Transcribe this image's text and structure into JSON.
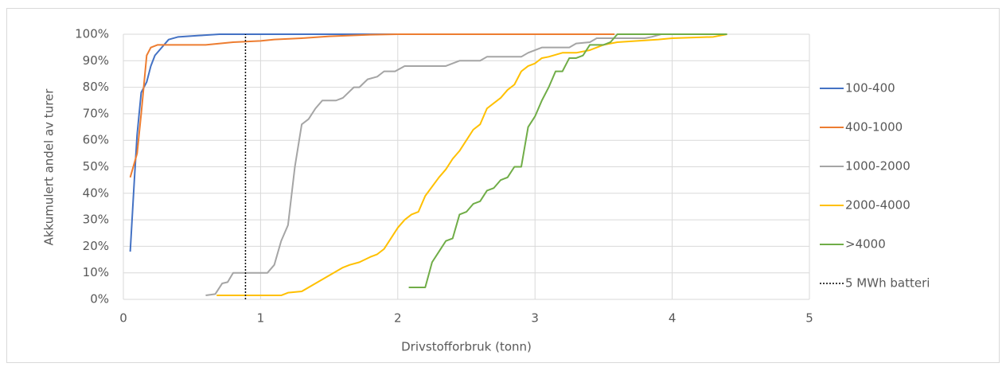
{
  "chart_data": {
    "type": "line",
    "x_label": "Drivstofforbruk (tonn)",
    "y_label": "Akkumulert andel av turer",
    "xlim": [
      0,
      5
    ],
    "xticks": [
      0,
      1,
      2,
      3,
      4,
      5
    ],
    "ylim": [
      0,
      100
    ],
    "yticks": [
      {
        "value": 0,
        "label": "0%"
      },
      {
        "value": 10,
        "label": "10%"
      },
      {
        "value": 20,
        "label": "20%"
      },
      {
        "value": 30,
        "label": "30%"
      },
      {
        "value": 40,
        "label": "40%"
      },
      {
        "value": 50,
        "label": "50%"
      },
      {
        "value": 60,
        "label": "60%"
      },
      {
        "value": 70,
        "label": "70%"
      },
      {
        "value": 80,
        "label": "80%"
      },
      {
        "value": 90,
        "label": "90%"
      },
      {
        "value": 100,
        "label": "100%"
      }
    ],
    "grid": true,
    "legend": "right",
    "series": [
      {
        "name": "100-400",
        "color": "#4472c4",
        "x": [
          0.05,
          0.08,
          0.1,
          0.13,
          0.17,
          0.2,
          0.23,
          0.28,
          0.33,
          0.4,
          0.55,
          0.7,
          2.0
        ],
        "values": [
          18,
          45,
          62,
          78,
          82,
          88,
          92,
          95,
          98,
          99,
          99.5,
          100,
          100
        ]
      },
      {
        "name": "400-1000",
        "color": "#ed7d31",
        "x": [
          0.05,
          0.1,
          0.13,
          0.17,
          0.2,
          0.25,
          0.6,
          0.8,
          1.0,
          1.1,
          1.3,
          1.5,
          1.8,
          2.0,
          3.58
        ],
        "values": [
          46,
          55,
          70,
          92,
          95,
          96,
          96,
          97,
          97.5,
          98,
          98.5,
          99.2,
          99.8,
          100,
          100
        ]
      },
      {
        "name": "1000-2000",
        "color": "#a5a5a5",
        "x": [
          0.6,
          0.67,
          0.72,
          0.76,
          0.8,
          0.9,
          1.05,
          1.1,
          1.15,
          1.2,
          1.25,
          1.3,
          1.35,
          1.4,
          1.45,
          1.55,
          1.6,
          1.68,
          1.72,
          1.78,
          1.85,
          1.9,
          1.98,
          2.05,
          2.35,
          2.45,
          2.6,
          2.65,
          2.9,
          2.95,
          3.05,
          3.25,
          3.3,
          3.4,
          3.45,
          3.8,
          3.85,
          3.92,
          4.4
        ],
        "values": [
          1.5,
          2,
          6,
          6.5,
          10,
          10,
          10,
          13,
          22,
          28,
          50,
          66,
          68,
          72,
          75,
          75,
          76,
          80,
          80,
          83,
          84,
          86,
          86,
          88,
          88,
          90,
          90,
          91.5,
          91.5,
          93,
          95,
          95,
          96.5,
          97,
          98.5,
          98.5,
          99,
          100,
          100
        ]
      },
      {
        "name": "2000-4000",
        "color": "#ffc000",
        "x": [
          0.68,
          1.15,
          1.2,
          1.3,
          1.4,
          1.5,
          1.6,
          1.65,
          1.72,
          1.8,
          1.85,
          1.9,
          1.95,
          2.0,
          2.05,
          2.1,
          2.15,
          2.2,
          2.3,
          2.35,
          2.4,
          2.45,
          2.5,
          2.55,
          2.6,
          2.65,
          2.7,
          2.75,
          2.8,
          2.85,
          2.9,
          2.95,
          3.0,
          3.05,
          3.1,
          3.2,
          3.3,
          3.4,
          3.5,
          3.6,
          3.9,
          4.0,
          4.3,
          4.4
        ],
        "values": [
          1.5,
          1.5,
          2.5,
          3,
          6,
          9,
          12,
          13,
          14,
          16,
          17,
          19,
          23,
          27,
          30,
          32,
          33,
          39,
          46,
          49,
          53,
          56,
          60,
          64,
          66,
          72,
          74,
          76,
          79,
          81,
          86,
          88,
          89,
          91,
          91.5,
          93,
          93,
          94,
          96,
          97,
          98,
          98.5,
          99,
          100
        ]
      },
      {
        "name": ">4000",
        "color": "#70ad47",
        "x": [
          2.08,
          2.2,
          2.25,
          2.3,
          2.35,
          2.4,
          2.45,
          2.5,
          2.55,
          2.6,
          2.65,
          2.7,
          2.75,
          2.8,
          2.85,
          2.9,
          2.95,
          3.0,
          3.05,
          3.1,
          3.15,
          3.2,
          3.25,
          3.3,
          3.35,
          3.4,
          3.5,
          3.55,
          3.6,
          4.4
        ],
        "values": [
          4.5,
          4.5,
          14,
          18,
          22,
          23,
          32,
          33,
          36,
          37,
          41,
          42,
          45,
          46,
          50,
          50,
          65,
          69,
          75,
          80,
          86,
          86,
          91,
          91,
          92,
          96,
          96,
          97,
          100,
          100
        ]
      },
      {
        "name": "5 MWh batteri",
        "color": "#000000",
        "dash": "dotted",
        "x": [
          0.89,
          0.89
        ],
        "values": [
          0,
          100
        ]
      }
    ]
  }
}
